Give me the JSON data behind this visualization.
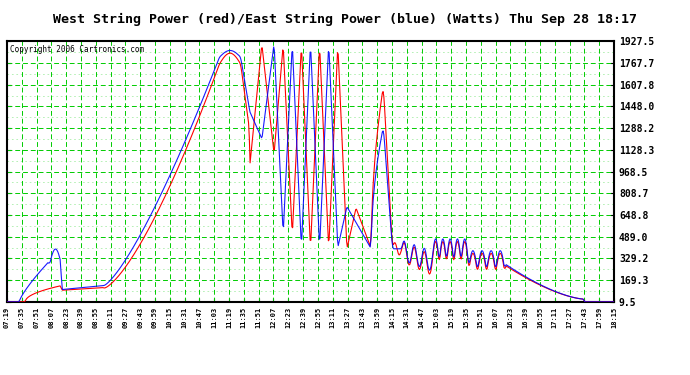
{
  "title": "West String Power (red)/East String Power (blue) (Watts) Thu Sep 28 18:17",
  "copyright": "Copyright 2006 Cartronics.com",
  "outer_bg": "#ffffff",
  "plot_bg_color": "#ffffff",
  "grid_color_major": "#00cc00",
  "text_color": "#000000",
  "title_color": "#000000",
  "ytick_labels": [
    "9.5",
    "169.3",
    "329.2",
    "489.0",
    "648.8",
    "808.7",
    "968.5",
    "1128.3",
    "1288.2",
    "1448.0",
    "1607.8",
    "1767.7",
    "1927.5"
  ],
  "ytick_values": [
    9.5,
    169.3,
    329.2,
    489.0,
    648.8,
    808.7,
    968.5,
    1128.3,
    1288.2,
    1448.0,
    1607.8,
    1767.7,
    1927.5
  ],
  "ymin": 9.5,
  "ymax": 1927.5,
  "xtick_labels": [
    "07:19",
    "07:35",
    "07:51",
    "08:07",
    "08:23",
    "08:39",
    "08:55",
    "09:11",
    "09:27",
    "09:43",
    "09:59",
    "10:15",
    "10:31",
    "10:47",
    "11:03",
    "11:19",
    "11:35",
    "11:51",
    "12:07",
    "12:23",
    "12:39",
    "12:55",
    "13:11",
    "13:27",
    "13:43",
    "13:59",
    "14:15",
    "14:31",
    "14:47",
    "15:03",
    "15:19",
    "15:35",
    "15:51",
    "16:07",
    "16:23",
    "16:39",
    "16:55",
    "17:11",
    "17:27",
    "17:43",
    "17:59",
    "18:15"
  ],
  "red_color": "#ff0000",
  "blue_color": "#0000ff",
  "border_color": "#000000",
  "copyright_color": "#000000"
}
